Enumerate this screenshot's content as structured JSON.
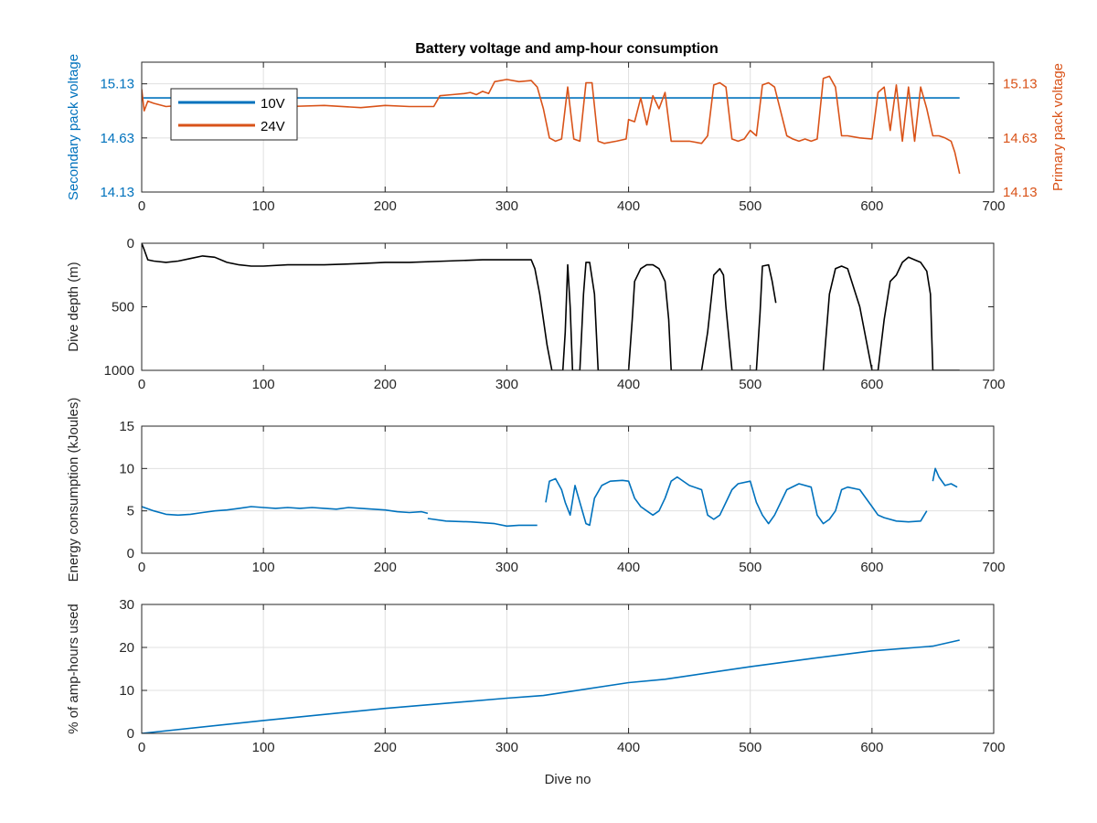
{
  "title": "Battery voltage and amp-hour consumption",
  "colors": {
    "blue": "#0072bd",
    "orange": "#d95319",
    "black": "#000000",
    "grid": "#e0e0e0",
    "axis": "#262626"
  },
  "chart_data": [
    {
      "type": "line",
      "title": "Battery voltage and amp-hour consumption",
      "xlabel": "",
      "ylabel": "Secondary pack voltage",
      "ylabel_right": "Primary pack voltage",
      "xlim": [
        0,
        700
      ],
      "ylim": [
        14.13,
        15.33
      ],
      "ylim_right": [
        14.13,
        15.33
      ],
      "xticks": [
        "0",
        "100",
        "200",
        "300",
        "400",
        "500",
        "600",
        "700"
      ],
      "yticks": [
        "14.13",
        "14.63",
        "15.13"
      ],
      "yticks_right": [
        "14.13",
        "14.63",
        "15.13"
      ],
      "grid": true,
      "legend": "top-left",
      "series": [
        {
          "name": "10V",
          "axis": "left",
          "color": "#0072bd",
          "x": [
            0,
            672
          ],
          "y": [
            15.0,
            15.0
          ]
        },
        {
          "name": "24V",
          "axis": "right",
          "color": "#d95319",
          "x": [
            0,
            2,
            5,
            10,
            20,
            40,
            60,
            80,
            100,
            120,
            150,
            180,
            200,
            220,
            240,
            245,
            255,
            265,
            270,
            275,
            280,
            285,
            290,
            300,
            310,
            320,
            325,
            330,
            335,
            340,
            345,
            350,
            355,
            360,
            365,
            370,
            375,
            380,
            390,
            398,
            400,
            405,
            410,
            415,
            420,
            425,
            430,
            435,
            440,
            450,
            460,
            465,
            470,
            475,
            480,
            485,
            490,
            495,
            500,
            505,
            510,
            515,
            520,
            530,
            535,
            540,
            545,
            550,
            555,
            560,
            565,
            570,
            575,
            580,
            590,
            600,
            605,
            610,
            615,
            620,
            625,
            630,
            635,
            640,
            645,
            650,
            655,
            660,
            665,
            668,
            672
          ],
          "y": [
            15.08,
            14.88,
            14.97,
            14.95,
            14.92,
            14.94,
            14.91,
            14.93,
            14.91,
            14.92,
            14.93,
            14.91,
            14.93,
            14.92,
            14.92,
            15.02,
            15.03,
            15.04,
            15.05,
            15.03,
            15.06,
            15.04,
            15.15,
            15.17,
            15.15,
            15.16,
            15.1,
            14.9,
            14.63,
            14.6,
            14.62,
            15.1,
            14.62,
            14.6,
            15.14,
            15.14,
            14.6,
            14.58,
            14.6,
            14.62,
            14.8,
            14.78,
            15.0,
            14.75,
            15.02,
            14.9,
            15.05,
            14.6,
            14.6,
            14.6,
            14.58,
            14.65,
            15.12,
            15.14,
            15.1,
            14.62,
            14.6,
            14.62,
            14.7,
            14.65,
            15.12,
            15.14,
            15.1,
            14.65,
            14.62,
            14.6,
            14.62,
            14.6,
            14.62,
            15.18,
            15.2,
            15.1,
            14.65,
            14.65,
            14.63,
            14.62,
            15.05,
            15.1,
            14.7,
            15.12,
            14.6,
            15.1,
            14.6,
            15.1,
            14.9,
            14.65,
            14.65,
            14.63,
            14.6,
            14.5,
            14.3
          ]
        }
      ]
    },
    {
      "type": "line",
      "ylabel": "Dive depth (m)",
      "xlabel": "",
      "xlim": [
        0,
        700
      ],
      "ylim": [
        1000,
        0
      ],
      "xticks": [
        "0",
        "100",
        "200",
        "300",
        "400",
        "500",
        "600",
        "700"
      ],
      "yticks": [
        "0",
        "500",
        "1000"
      ],
      "grid": false,
      "series": [
        {
          "color": "#000000",
          "x": [
            0,
            2,
            5,
            10,
            20,
            30,
            40,
            50,
            60,
            70,
            80,
            90,
            100,
            120,
            150,
            180,
            200,
            220,
            250,
            280,
            300,
            320,
            323,
            327,
            330,
            333,
            337,
            340,
            343,
            346,
            348,
            350,
            352,
            354,
            356,
            360,
            363,
            365,
            368,
            372,
            375,
            380,
            390,
            400,
            403,
            405,
            410,
            415,
            420,
            425,
            430,
            433,
            435,
            440,
            450,
            460,
            465,
            470,
            475,
            478,
            480,
            485,
            490,
            500,
            505,
            508,
            510,
            515,
            518,
            521
          ],
          "y": [
            0,
            50,
            130,
            140,
            150,
            140,
            120,
            100,
            110,
            150,
            170,
            180,
            180,
            170,
            170,
            160,
            150,
            150,
            140,
            130,
            130,
            130,
            200,
            400,
            600,
            800,
            1000,
            1000,
            1000,
            1000,
            700,
            170,
            500,
            1000,
            1000,
            1000,
            400,
            150,
            150,
            400,
            1000,
            1000,
            1000,
            1000,
            600,
            300,
            200,
            170,
            170,
            200,
            300,
            600,
            1000,
            1000,
            1000,
            1000,
            700,
            250,
            200,
            250,
            500,
            1000,
            1000,
            1000,
            1000,
            550,
            180,
            170,
            300,
            470
          ],
          "x2": [
            560,
            565,
            570,
            575,
            580,
            590,
            600,
            605,
            610,
            615,
            620,
            625,
            630,
            635,
            640,
            645,
            648,
            650,
            655,
            660,
            672
          ],
          "y2": [
            1000,
            400,
            200,
            180,
            200,
            500,
            1000,
            1000,
            600,
            300,
            250,
            150,
            110,
            130,
            150,
            220,
            400,
            1000,
            1000,
            1000,
            1000
          ]
        }
      ]
    },
    {
      "type": "line",
      "ylabel": "Energy consumption (kJoules)",
      "xlabel": "",
      "xlim": [
        0,
        700
      ],
      "ylim": [
        0,
        15
      ],
      "xticks": [
        "0",
        "100",
        "200",
        "300",
        "400",
        "500",
        "600",
        "700"
      ],
      "yticks": [
        "0",
        "5",
        "10",
        "15"
      ],
      "grid": true,
      "series": [
        {
          "color": "#0072bd",
          "segments": [
            {
              "x": [
                0,
                10,
                20,
                30,
                40,
                50,
                60,
                70,
                80,
                90,
                100,
                110,
                120,
                130,
                140,
                150,
                160,
                170,
                180,
                190,
                200,
                210,
                220,
                230,
                235
              ],
              "y": [
                5.5,
                5.0,
                4.6,
                4.5,
                4.6,
                4.8,
                5.0,
                5.1,
                5.3,
                5.5,
                5.4,
                5.3,
                5.4,
                5.3,
                5.4,
                5.3,
                5.2,
                5.4,
                5.3,
                5.2,
                5.1,
                4.9,
                4.8,
                4.9,
                4.7
              ]
            },
            {
              "x": [
                235,
                250,
                270,
                290,
                300,
                310,
                325
              ],
              "y": [
                4.1,
                3.8,
                3.7,
                3.5,
                3.2,
                3.3,
                3.3
              ]
            },
            {
              "x": [
                332,
                335,
                340,
                345,
                348,
                352,
                356,
                360,
                365,
                368,
                372,
                378,
                385,
                395,
                400,
                405,
                410,
                415,
                420,
                425,
                430,
                435,
                440,
                450,
                460,
                465,
                470,
                475,
                480,
                485,
                490,
                500,
                505,
                510,
                515,
                520,
                530,
                540,
                550,
                555,
                560,
                565,
                570,
                575,
                580,
                590,
                600,
                605,
                610,
                620,
                630,
                640,
                645
              ],
              "y": [
                6.0,
                8.5,
                8.8,
                7.5,
                6.0,
                4.5,
                8.0,
                6.0,
                3.5,
                3.3,
                6.5,
                8.0,
                8.5,
                8.6,
                8.5,
                6.5,
                5.5,
                5.0,
                4.5,
                5.0,
                6.5,
                8.5,
                9.0,
                8.0,
                7.5,
                4.5,
                4.0,
                4.5,
                6.0,
                7.5,
                8.2,
                8.5,
                6.0,
                4.5,
                3.5,
                4.5,
                7.5,
                8.2,
                7.8,
                4.5,
                3.5,
                4.0,
                5.0,
                7.5,
                7.8,
                7.5,
                5.5,
                4.5,
                4.2,
                3.8,
                3.7,
                3.8,
                5.0
              ]
            },
            {
              "x": [
                650,
                652,
                655,
                660,
                665,
                670
              ],
              "y": [
                8.5,
                10.0,
                9.0,
                8.0,
                8.2,
                7.8
              ]
            }
          ]
        }
      ]
    },
    {
      "type": "line",
      "ylabel": "% of amp-hours used",
      "xlabel": "Dive no",
      "xlim": [
        0,
        700
      ],
      "ylim": [
        0,
        30
      ],
      "xticks": [
        "0",
        "100",
        "200",
        "300",
        "400",
        "500",
        "600",
        "700"
      ],
      "yticks": [
        "0",
        "10",
        "20",
        "30"
      ],
      "grid": true,
      "series": [
        {
          "color": "#0072bd",
          "x": [
            0,
            100,
            200,
            300,
            330,
            400,
            430,
            500,
            550,
            600,
            650,
            672
          ],
          "y": [
            0,
            3.0,
            5.8,
            8.2,
            8.8,
            11.8,
            12.6,
            15.5,
            17.4,
            19.2,
            20.3,
            21.7
          ]
        }
      ]
    }
  ]
}
